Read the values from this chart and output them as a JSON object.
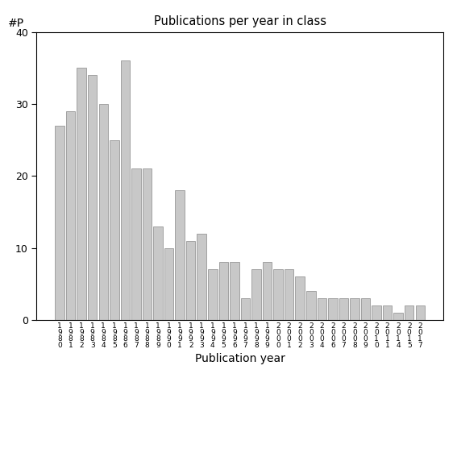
{
  "categories": [
    "1980",
    "1981",
    "1982",
    "1983",
    "1984",
    "1985",
    "1986",
    "1987",
    "1988",
    "1989",
    "1990",
    "1991",
    "1992",
    "1993",
    "1994",
    "1995",
    "1996",
    "1997",
    "1998",
    "1999",
    "2000",
    "2001",
    "2002",
    "2003",
    "2004",
    "2006",
    "2007",
    "2008",
    "2009",
    "2010",
    "2011",
    "2014",
    "2015",
    "2017"
  ],
  "values": [
    27,
    29,
    35,
    34,
    30,
    25,
    36,
    21,
    21,
    13,
    10,
    18,
    11,
    12,
    7,
    8,
    8,
    3,
    7,
    8,
    7,
    7,
    6,
    4,
    3,
    3,
    3,
    3,
    3,
    2,
    2,
    1,
    2,
    2
  ],
  "title": "Publications per year in class",
  "xlabel": "Publication year",
  "ylabel": "#P",
  "ylim": [
    0,
    40
  ],
  "yticks": [
    0,
    10,
    20,
    30,
    40
  ],
  "bar_color": "#c8c8c8",
  "bar_edge_color": "#888888",
  "background_color": "#ffffff"
}
